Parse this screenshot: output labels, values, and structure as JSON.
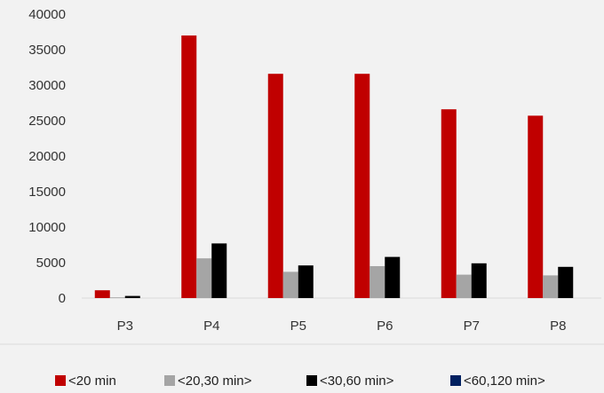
{
  "chart_data": {
    "type": "bar",
    "title": "",
    "xlabel": "",
    "ylabel": "",
    "categories": [
      "P3",
      "P4",
      "P5",
      "P6",
      "P7",
      "P8"
    ],
    "ylim": [
      0,
      40000
    ],
    "yticks": [
      0,
      5000,
      10000,
      15000,
      20000,
      25000,
      30000,
      35000,
      40000
    ],
    "grid": false,
    "legend_position": "bottom",
    "series": [
      {
        "name": "<20 min",
        "color": "#c00000",
        "values": [
          1100,
          37000,
          31600,
          31600,
          26600,
          25700
        ]
      },
      {
        "name": "<20,30 min>",
        "color": "#a5a5a5",
        "values": [
          100,
          5600,
          3700,
          4500,
          3300,
          3200
        ]
      },
      {
        "name": "<30,60 min>",
        "color": "#000000",
        "values": [
          300,
          7700,
          4600,
          5800,
          4900,
          4400
        ]
      },
      {
        "name": "<60,120 min>",
        "color": "#002060",
        "values": [
          0,
          0,
          0,
          0,
          0,
          0
        ]
      }
    ]
  }
}
